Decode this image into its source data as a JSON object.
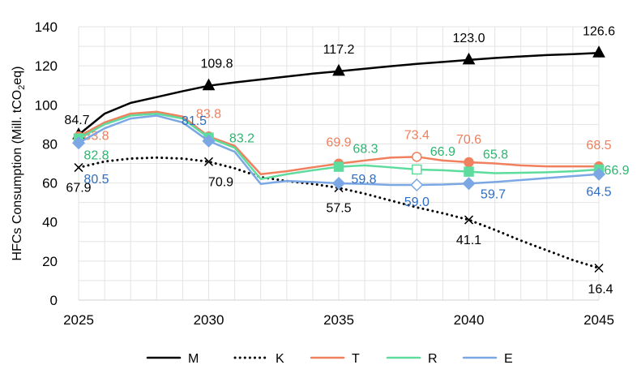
{
  "chart_data": {
    "type": "line",
    "ylabel": "HFCs Consumption (Mill. tCO2eq)",
    "ylabel_parts": [
      "HFCs Consumption (Mill. tCO",
      "2",
      "eq)"
    ],
    "xlabel": "",
    "xlim": [
      2025,
      2045
    ],
    "ylim": [
      0,
      140
    ],
    "xticks": [
      "2025",
      "2030",
      "2035",
      "2040",
      "2045"
    ],
    "yticks": [
      "0",
      "20",
      "40",
      "60",
      "80",
      "100",
      "120",
      "140"
    ],
    "grid": true,
    "legend_position": "bottom",
    "x": [
      2025,
      2026,
      2027,
      2028,
      2029,
      2030,
      2031,
      2032,
      2033,
      2034,
      2035,
      2036,
      2037,
      2038,
      2039,
      2040,
      2041,
      2042,
      2043,
      2044,
      2045
    ],
    "series": [
      {
        "name": "M",
        "color": "#000000",
        "style": "solid",
        "marker": "triangle",
        "values": [
          84.7,
          95.5,
          101,
          104,
          107,
          109.8,
          111.5,
          113,
          114.5,
          116,
          117.2,
          118.5,
          119.8,
          121,
          122,
          123.0,
          124,
          124.8,
          125.5,
          126,
          126.6
        ],
        "labels": [
          {
            "year": 2025,
            "text": "84.7"
          },
          {
            "year": 2030,
            "text": "109.8"
          },
          {
            "year": 2035,
            "text": "117.2"
          },
          {
            "year": 2040,
            "text": "123.0"
          },
          {
            "year": 2045,
            "text": "126.6"
          }
        ]
      },
      {
        "name": "K",
        "color": "#000000",
        "style": "dotted",
        "marker": "x",
        "values": [
          67.9,
          71,
          72.5,
          73,
          72.5,
          70.9,
          67.5,
          63,
          61,
          59.5,
          57.5,
          54.5,
          51,
          47.5,
          44.5,
          41.1,
          36,
          30.5,
          25.5,
          20.5,
          16.4
        ],
        "labels": [
          {
            "year": 2025,
            "text": "67.9"
          },
          {
            "year": 2030,
            "text": "70.9"
          },
          {
            "year": 2035,
            "text": "57.5"
          },
          {
            "year": 2040,
            "text": "41.1"
          },
          {
            "year": 2045,
            "text": "16.4"
          }
        ]
      },
      {
        "name": "T",
        "color": "#F0805E",
        "label_color": "#EE7F5D",
        "style": "solid",
        "marker": "circle",
        "values": [
          83.8,
          91,
          95.5,
          96.5,
          94,
          83.8,
          79,
          64.5,
          66,
          68,
          69.9,
          71.5,
          73,
          73.4,
          71.5,
          70.6,
          70,
          69,
          68.5,
          68.5,
          68.5
        ],
        "labels": [
          {
            "year": 2025,
            "text": "83.8"
          },
          {
            "year": 2030,
            "text": "83.8"
          },
          {
            "year": 2035,
            "text": "69.9"
          },
          {
            "year": 2038,
            "text": "73.4"
          },
          {
            "year": 2040,
            "text": "70.6"
          },
          {
            "year": 2045,
            "text": "68.5"
          }
        ]
      },
      {
        "name": "R",
        "color": "#5EDC9E",
        "label_color": "#2FB570",
        "style": "solid",
        "marker": "square",
        "values": [
          82.8,
          90,
          94.5,
          95.5,
          93,
          83.2,
          78,
          62,
          64.5,
          66.5,
          68.3,
          69,
          68,
          66.9,
          66.5,
          65.8,
          65,
          65.2,
          65.5,
          66,
          66.9
        ],
        "labels": [
          {
            "year": 2025,
            "text": "82.8"
          },
          {
            "year": 2030,
            "text": "83.2"
          },
          {
            "year": 2035,
            "text": "68.3"
          },
          {
            "year": 2038,
            "text": "66.9"
          },
          {
            "year": 2040,
            "text": "65.8"
          },
          {
            "year": 2045,
            "text": "66.9"
          }
        ]
      },
      {
        "name": "E",
        "color": "#7BA8E4",
        "label_color": "#2F6DBF",
        "style": "solid",
        "marker": "diamond",
        "values": [
          80.5,
          88,
          93,
          94.5,
          91,
          81.5,
          76,
          59.5,
          61,
          60.5,
          59.8,
          59.5,
          59,
          59.0,
          59.2,
          59.7,
          60.5,
          61.5,
          62.5,
          63.5,
          64.5
        ],
        "labels": [
          {
            "year": 2025,
            "text": "80.5"
          },
          {
            "year": 2030,
            "text": "81.5"
          },
          {
            "year": 2035,
            "text": "59.8"
          },
          {
            "year": 2038,
            "text": "59.0"
          },
          {
            "year": 2040,
            "text": "59.7"
          },
          {
            "year": 2045,
            "text": "64.5"
          }
        ]
      }
    ],
    "hollow_marker_year": 2038
  }
}
